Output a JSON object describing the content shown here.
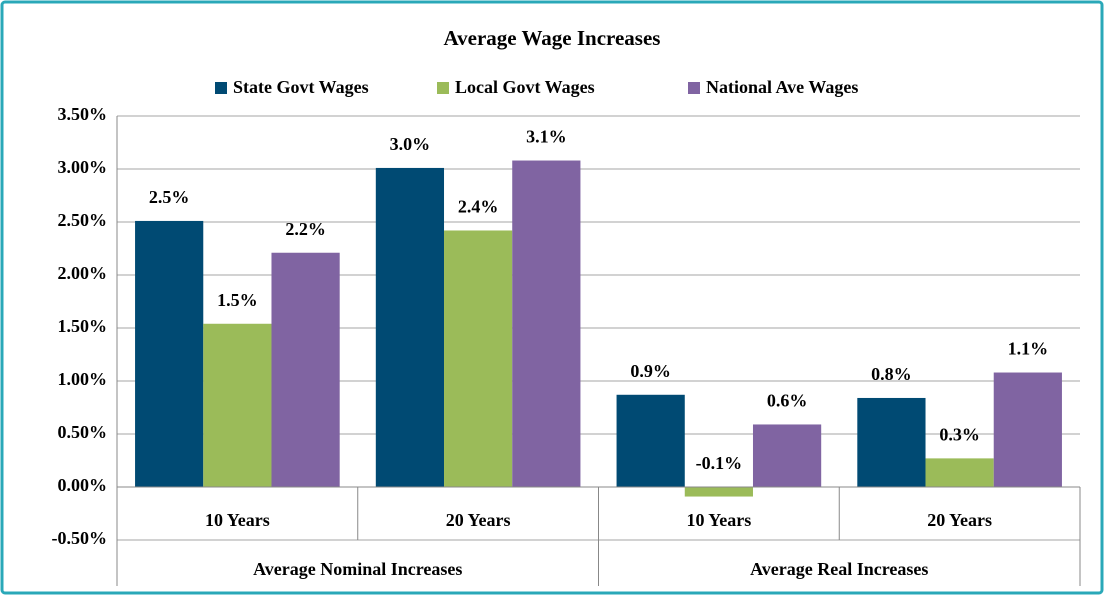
{
  "chart_data": {
    "type": "bar",
    "title": "Average Wage Increases",
    "groups": [
      {
        "name": "Average Nominal Increases",
        "categories": [
          "10 Years",
          "20 Years"
        ]
      },
      {
        "name": "Average Real Increases",
        "categories": [
          "10 Years",
          "20 Years"
        ]
      }
    ],
    "series": [
      {
        "name": "State Govt Wages",
        "color": "#004a73",
        "values": [
          2.51,
          3.01,
          0.87,
          0.84
        ],
        "value_labels": [
          "2.5%",
          "3.0%",
          "0.9%",
          "0.8%"
        ]
      },
      {
        "name": "Local Govt Wages",
        "color": "#9bbb59",
        "values": [
          1.54,
          2.42,
          -0.09,
          0.27
        ],
        "value_labels": [
          "1.5%",
          "2.4%",
          "-0.1%",
          "0.3%"
        ]
      },
      {
        "name": "National Ave Wages",
        "color": "#8064a2",
        "values": [
          2.21,
          3.08,
          0.59,
          1.08
        ],
        "value_labels": [
          "2.2%",
          "3.1%",
          "0.6%",
          "1.1%"
        ]
      }
    ],
    "ylim": [
      -0.5,
      3.5
    ],
    "yticks": [
      {
        "value": -0.5,
        "label": "-0.50%"
      },
      {
        "value": 0,
        "label": "0.00%"
      },
      {
        "value": 0.5,
        "label": "0.50%"
      },
      {
        "value": 1,
        "label": "1.00%"
      },
      {
        "value": 1.5,
        "label": "1.50%"
      },
      {
        "value": 2,
        "label": "2.00%"
      },
      {
        "value": 2.5,
        "label": "2.50%"
      },
      {
        "value": 3,
        "label": "3.00%"
      },
      {
        "value": 3.5,
        "label": "3.50%"
      }
    ],
    "grid": true,
    "legend": "top"
  }
}
